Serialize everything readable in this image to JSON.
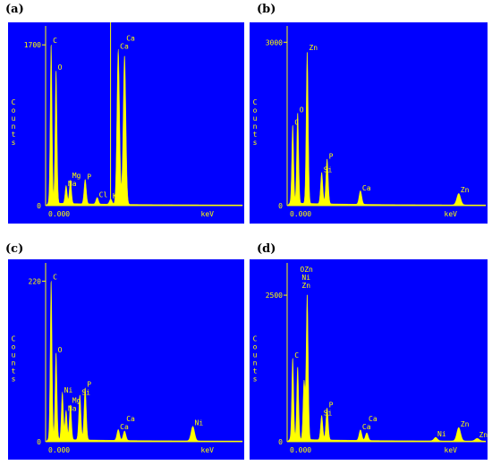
{
  "chart_data": [
    {
      "type": "area",
      "panel_label": "(a)",
      "title": "",
      "ylabel": "Counts",
      "xlabel": "keV",
      "x_start_label": "0.000",
      "y_max_label": "1700",
      "y_zero_label": "0",
      "xlim": [
        0,
        10
      ],
      "ylim": [
        0,
        1900
      ],
      "cursor_x": 3.3,
      "background": "#0000ff",
      "trace_color": "#ffff00",
      "peaks": [
        {
          "x": 0.28,
          "y": 1700,
          "label": "C"
        },
        {
          "x": 0.53,
          "y": 1420,
          "label": "O"
        },
        {
          "x": 1.04,
          "y": 190,
          "label": "Na"
        },
        {
          "x": 1.26,
          "y": 250,
          "label": "Mg"
        },
        {
          "x": 2.01,
          "y": 260,
          "label": "P"
        },
        {
          "x": 2.62,
          "y": 70,
          "label": "Cl"
        },
        {
          "x": 3.31,
          "y": 55,
          "label": "K"
        },
        {
          "x": 3.69,
          "y": 1640,
          "label": "Ca"
        },
        {
          "x": 4.01,
          "y": 1580,
          "label": "Ca"
        }
      ]
    },
    {
      "type": "area",
      "panel_label": "(b)",
      "title": "",
      "ylabel": "Counts",
      "xlabel": "keV",
      "x_start_label": "0.000",
      "y_max_label": "3000",
      "y_zero_label": "0",
      "xlim": [
        0,
        10
      ],
      "ylim": [
        0,
        3300
      ],
      "cursor_x": null,
      "background": "#0000ff",
      "trace_color": "#ffff00",
      "peaks": [
        {
          "x": 0.28,
          "y": 1450,
          "label": "C"
        },
        {
          "x": 0.53,
          "y": 1680,
          "label": "O"
        },
        {
          "x": 1.01,
          "y": 2820,
          "label": "Zn"
        },
        {
          "x": 1.74,
          "y": 580,
          "label": "Si"
        },
        {
          "x": 2.01,
          "y": 830,
          "label": "P"
        },
        {
          "x": 3.69,
          "y": 250,
          "label": "Ca"
        },
        {
          "x": 8.64,
          "y": 210,
          "label": "Zn"
        }
      ]
    },
    {
      "type": "area",
      "panel_label": "(c)",
      "title": "",
      "ylabel": "Counts",
      "xlabel": "keV",
      "x_start_label": "0.000",
      "y_max_label": "220",
      "y_zero_label": "0",
      "xlim": [
        0,
        10
      ],
      "ylim": [
        0,
        245
      ],
      "cursor_x": null,
      "background": "#0000ff",
      "trace_color": "#ffff00",
      "peaks": [
        {
          "x": 0.28,
          "y": 220,
          "label": "C"
        },
        {
          "x": 0.53,
          "y": 120,
          "label": "O"
        },
        {
          "x": 0.85,
          "y": 65,
          "label": "Ni"
        },
        {
          "x": 1.04,
          "y": 40,
          "label": "Na"
        },
        {
          "x": 1.26,
          "y": 48,
          "label": "Mg"
        },
        {
          "x": 1.74,
          "y": 62,
          "label": "Si"
        },
        {
          "x": 2.01,
          "y": 72,
          "label": "P"
        },
        {
          "x": 3.69,
          "y": 15,
          "label": "Ca"
        },
        {
          "x": 4.01,
          "y": 13,
          "label": "Ca"
        },
        {
          "x": 7.48,
          "y": 20,
          "label": "Ni"
        }
      ]
    },
    {
      "type": "area",
      "panel_label": "(d)",
      "title": "",
      "ylabel": "Counts",
      "xlabel": "keV",
      "x_start_label": "0.000",
      "y_max_label": "2500",
      "y_zero_label": "0",
      "xlim": [
        0,
        10
      ],
      "ylim": [
        0,
        3050
      ],
      "cursor_x": null,
      "background": "#0000ff",
      "trace_color": "#ffff00",
      "peaks": [
        {
          "x": 0.28,
          "y": 1400,
          "label": "C"
        },
        {
          "x": 0.53,
          "y": 1250,
          "label": "O"
        },
        {
          "x": 0.85,
          "y": 1000,
          "label": "Ni"
        },
        {
          "x": 1.01,
          "y": 2500,
          "label": "Zn"
        },
        {
          "x": 1.74,
          "y": 420,
          "label": "Si"
        },
        {
          "x": 2.01,
          "y": 550,
          "label": "P"
        },
        {
          "x": 3.69,
          "y": 180,
          "label": "Ca"
        },
        {
          "x": 4.01,
          "y": 130,
          "label": "Ca"
        },
        {
          "x": 7.48,
          "y": 60,
          "label": "Ni"
        },
        {
          "x": 8.64,
          "y": 230,
          "label": "Zn"
        },
        {
          "x": 9.57,
          "y": 45,
          "label": "Zn"
        }
      ],
      "stacked_label": [
        "O",
        "Zn",
        "Ni",
        "Zn"
      ]
    }
  ]
}
